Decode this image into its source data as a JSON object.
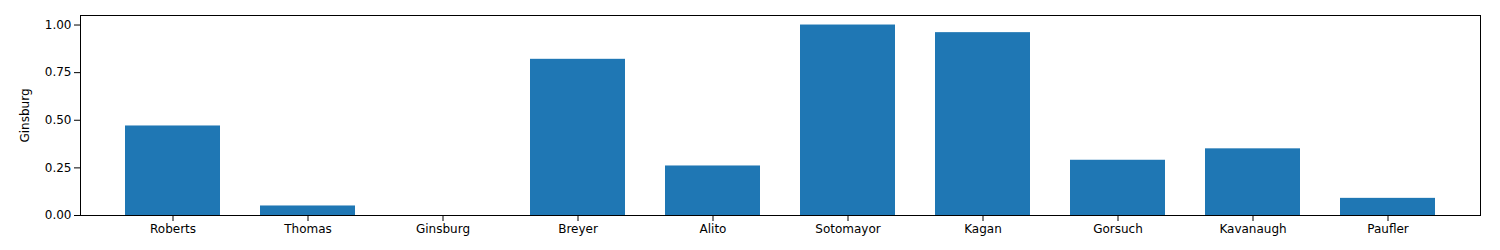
{
  "chart_data": {
    "type": "bar",
    "categories": [
      "Roberts",
      "Thomas",
      "Ginsburg",
      "Breyer",
      "Alito",
      "Sotomayor",
      "Kagan",
      "Gorsuch",
      "Kavanaugh",
      "Paufler"
    ],
    "values": [
      0.47,
      0.05,
      0.0,
      0.82,
      0.26,
      1.0,
      0.96,
      0.29,
      0.35,
      0.09
    ],
    "color": "#1f77b4",
    "ylabel": "Ginsburg",
    "ylim": [
      0,
      1.05
    ],
    "yticks": [
      {
        "value": 0,
        "label": "0.00"
      },
      0.25,
      {
        "value": 0.5,
        "label": "0.50"
      },
      0.75,
      {
        "value": 1,
        "label": "1.00"
      }
    ],
    "grid": false
  }
}
